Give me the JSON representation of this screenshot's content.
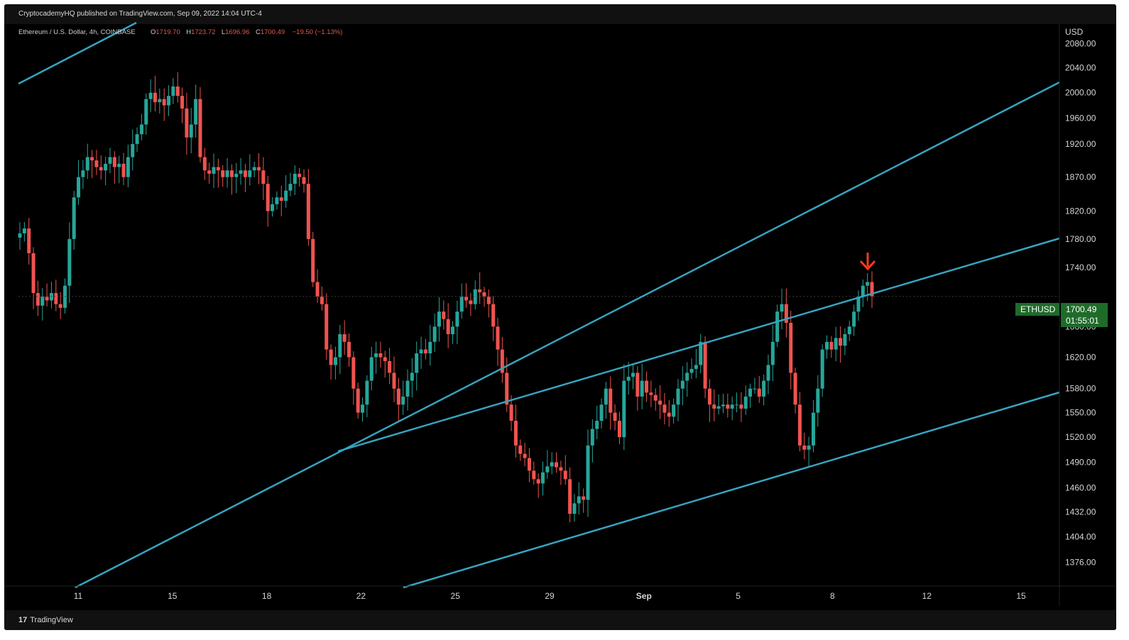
{
  "header": {
    "published": "CryptocademyHQ published on TradingView.com, Sep 09, 2022 14:04 UTC-4"
  },
  "legend": {
    "symbol": "Ethereum / U.S. Dollar, 4h, COINBASE",
    "open_key": "O",
    "open": "1719.70",
    "high_key": "H",
    "high": "1723.72",
    "low_key": "L",
    "low": "1696.96",
    "close_key": "C",
    "close": "1700.49",
    "change": "−19.50 (−1.13%)"
  },
  "price_axis": {
    "currency": "USD",
    "last_label_symbol": "ETHUSD",
    "last_price": "1700.49",
    "countdown": "01:55:01"
  },
  "footer": {
    "brand": "TradingView",
    "logo_glyph": "17"
  },
  "colors": {
    "background": "#000000",
    "up": "#26a69a",
    "down": "#ef5350",
    "trendline": "#38a3c0",
    "arrow": "#f23b1f",
    "price_label_bg": "#1f6b2a"
  },
  "chart_data": {
    "type": "candlestick",
    "title": "Ethereum / U.S. Dollar, 4h, COINBASE",
    "y_scale": "log",
    "ylim": [
      1350,
      2110
    ],
    "x_ticks": [
      "11",
      "15",
      "18",
      "22",
      "25",
      "29",
      "Sep",
      "5",
      "8",
      "12",
      "15"
    ],
    "y_ticks": [
      "2080.00",
      "2040.00",
      "2000.00",
      "1960.00",
      "1920.00",
      "1870.00",
      "1820.00",
      "1780.00",
      "1740.00",
      "1660.00",
      "1620.00",
      "1580.00",
      "1550.00",
      "1520.00",
      "1490.00",
      "1460.00",
      "1432.00",
      "1404.00",
      "1376.00"
    ],
    "close_series": [
      1788,
      1795,
      1760,
      1705,
      1688,
      1700,
      1695,
      1705,
      1690,
      1685,
      1715,
      1780,
      1840,
      1870,
      1880,
      1900,
      1895,
      1885,
      1880,
      1890,
      1900,
      1885,
      1890,
      1870,
      1900,
      1920,
      1935,
      1950,
      1990,
      2000,
      1985,
      1990,
      1980,
      1995,
      2010,
      1995,
      1975,
      1930,
      1950,
      1990,
      1900,
      1880,
      1875,
      1885,
      1880,
      1870,
      1880,
      1870,
      1875,
      1880,
      1870,
      1880,
      1885,
      1880,
      1860,
      1820,
      1830,
      1840,
      1835,
      1850,
      1860,
      1875,
      1870,
      1860,
      1780,
      1720,
      1700,
      1690,
      1630,
      1610,
      1620,
      1650,
      1640,
      1620,
      1580,
      1550,
      1560,
      1590,
      1620,
      1625,
      1620,
      1615,
      1600,
      1580,
      1560,
      1570,
      1590,
      1600,
      1625,
      1630,
      1625,
      1640,
      1660,
      1680,
      1670,
      1650,
      1660,
      1680,
      1700,
      1695,
      1690,
      1710,
      1706,
      1700,
      1690,
      1660,
      1630,
      1600,
      1560,
      1540,
      1510,
      1500,
      1495,
      1480,
      1470,
      1465,
      1478,
      1485,
      1490,
      1484,
      1480,
      1470,
      1430,
      1442,
      1450,
      1446,
      1510,
      1530,
      1540,
      1560,
      1580,
      1550,
      1540,
      1520,
      1590,
      1595,
      1600,
      1570,
      1590,
      1575,
      1572,
      1565,
      1560,
      1550,
      1545,
      1560,
      1580,
      1590,
      1600,
      1605,
      1610,
      1640,
      1580,
      1560,
      1555,
      1558,
      1560,
      1555,
      1560,
      1560,
      1555,
      1570,
      1580,
      1580,
      1570,
      1590,
      1610,
      1640,
      1680,
      1690,
      1665,
      1600,
      1560,
      1510,
      1505,
      1510,
      1550,
      1580,
      1630,
      1640,
      1630,
      1645,
      1635,
      1650,
      1660,
      1680,
      1700,
      1715,
      1720,
      1700.49
    ],
    "price_label": 1700.49,
    "annotation": "red arrow pointing down at 9 Sep high",
    "grid": false
  }
}
